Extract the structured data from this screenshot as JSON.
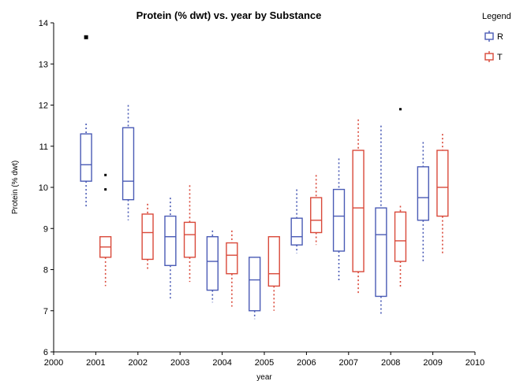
{
  "chart_data": {
    "type": "boxplot",
    "title": "Protein (% dwt) vs. year by Substance",
    "xlabel": "year",
    "ylabel": "Protein (% dwt)",
    "xlim": [
      2000,
      2010
    ],
    "ylim": [
      6,
      14
    ],
    "xticks": [
      "2000",
      "2001",
      "2002",
      "2003",
      "2004",
      "2005",
      "2006",
      "2007",
      "2008",
      "2009",
      "2010"
    ],
    "yticks": [
      "6",
      "7",
      "8",
      "9",
      "10",
      "11",
      "12",
      "13",
      "14"
    ],
    "grid": false,
    "legend": {
      "title": "Legend",
      "position": "right"
    },
    "series": [
      {
        "name": "R",
        "color": "#4a5bb5",
        "boxes": [
          {
            "x": 2001,
            "whisker_low": 9.5,
            "q1": 10.15,
            "median": 10.55,
            "q3": 11.3,
            "whisker_high": 11.55,
            "outliers": [
              13.65
            ]
          },
          {
            "x": 2002,
            "whisker_low": 9.2,
            "q1": 9.7,
            "median": 10.15,
            "q3": 11.45,
            "whisker_high": 12.0,
            "outliers": []
          },
          {
            "x": 2003,
            "whisker_low": 7.3,
            "q1": 8.1,
            "median": 8.8,
            "q3": 9.3,
            "whisker_high": 9.75,
            "outliers": []
          },
          {
            "x": 2004,
            "whisker_low": 7.2,
            "q1": 7.5,
            "median": 8.2,
            "q3": 8.8,
            "whisker_high": 8.95,
            "outliers": []
          },
          {
            "x": 2005,
            "whisker_low": 6.8,
            "q1": 7.0,
            "median": 7.75,
            "q3": 8.3,
            "whisker_high": 8.3,
            "outliers": []
          },
          {
            "x": 2006,
            "whisker_low": 8.4,
            "q1": 8.6,
            "median": 8.8,
            "q3": 9.25,
            "whisker_high": 9.95,
            "outliers": []
          },
          {
            "x": 2007,
            "whisker_low": 7.7,
            "q1": 8.45,
            "median": 9.3,
            "q3": 9.95,
            "whisker_high": 10.7,
            "outliers": []
          },
          {
            "x": 2008,
            "whisker_low": 6.9,
            "q1": 7.35,
            "median": 8.85,
            "q3": 9.5,
            "whisker_high": 11.5,
            "outliers": []
          },
          {
            "x": 2009,
            "whisker_low": 8.2,
            "q1": 9.2,
            "median": 9.75,
            "q3": 10.5,
            "whisker_high": 11.1,
            "outliers": []
          }
        ]
      },
      {
        "name": "T",
        "color": "#d9493a",
        "boxes": [
          {
            "x": 2001,
            "whisker_low": 7.6,
            "q1": 8.3,
            "median": 8.55,
            "q3": 8.8,
            "whisker_high": 8.8,
            "outliers": [
              10.3,
              9.95
            ]
          },
          {
            "x": 2002,
            "whisker_low": 8.0,
            "q1": 8.25,
            "median": 8.9,
            "q3": 9.35,
            "whisker_high": 9.6,
            "outliers": []
          },
          {
            "x": 2003,
            "whisker_low": 7.7,
            "q1": 8.3,
            "median": 8.85,
            "q3": 9.15,
            "whisker_high": 10.05,
            "outliers": []
          },
          {
            "x": 2004,
            "whisker_low": 7.1,
            "q1": 7.9,
            "median": 8.35,
            "q3": 8.65,
            "whisker_high": 8.95,
            "outliers": []
          },
          {
            "x": 2005,
            "whisker_low": 7.0,
            "q1": 7.6,
            "median": 7.9,
            "q3": 8.8,
            "whisker_high": 8.8,
            "outliers": []
          },
          {
            "x": 2006,
            "whisker_low": 8.6,
            "q1": 8.9,
            "median": 9.2,
            "q3": 9.75,
            "whisker_high": 10.3,
            "outliers": []
          },
          {
            "x": 2007,
            "whisker_low": 7.4,
            "q1": 7.95,
            "median": 9.5,
            "q3": 10.9,
            "whisker_high": 11.65,
            "outliers": []
          },
          {
            "x": 2008,
            "whisker_low": 7.55,
            "q1": 8.2,
            "median": 8.7,
            "q3": 9.4,
            "whisker_high": 9.55,
            "outliers": [
              11.9
            ]
          },
          {
            "x": 2009,
            "whisker_low": 8.4,
            "q1": 9.3,
            "median": 10.0,
            "q3": 10.9,
            "whisker_high": 11.3,
            "outliers": []
          }
        ]
      }
    ]
  }
}
